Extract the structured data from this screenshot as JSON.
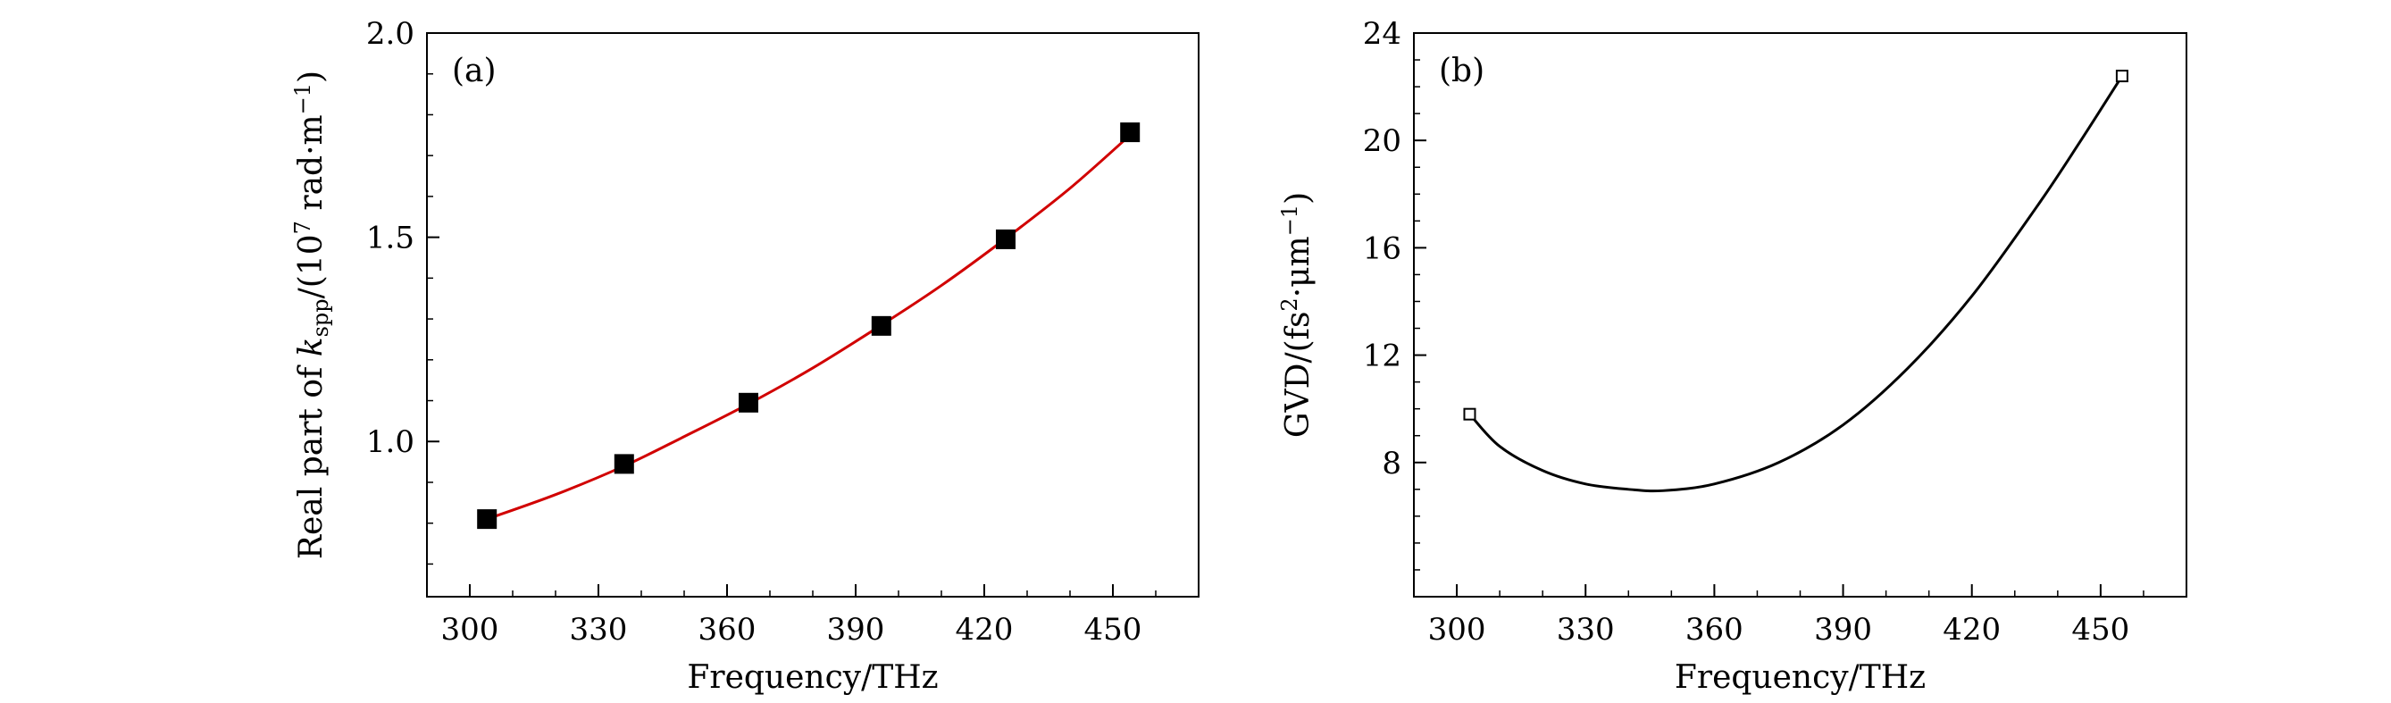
{
  "colors": {
    "fit_a": "#d10000",
    "curve_b": "#000000",
    "axis": "#000000"
  },
  "chart_data": [
    {
      "type": "scatter",
      "panel_label": "(a)",
      "xlabel": "Frequency/THz",
      "ylabel": {
        "prefix": "Real part of ",
        "symbol": "k",
        "subscript": "spp",
        "mid": "/(10",
        "superscript": "7",
        "suffix": " rad·m",
        "suffix_superscript": "−1",
        "close": ")"
      },
      "xlim": [
        290,
        470
      ],
      "ylim": [
        0.62,
        2.0
      ],
      "xticks": [
        "300",
        "330",
        "360",
        "390",
        "420",
        "450"
      ],
      "yticks": [
        "1.0",
        "1.5",
        "2.0"
      ],
      "series": [
        {
          "name": "data",
          "marker": "filled-square",
          "x": [
            304,
            336,
            365,
            396,
            425,
            454
          ],
          "y": [
            0.81,
            0.945,
            1.095,
            1.283,
            1.495,
            1.757
          ]
        },
        {
          "name": "fit",
          "style": "line",
          "x": [
            304,
            320,
            336,
            350,
            365,
            380,
            396,
            410,
            425,
            440,
            454
          ],
          "y": [
            0.81,
            0.87,
            0.94,
            1.012,
            1.092,
            1.18,
            1.285,
            1.382,
            1.497,
            1.62,
            1.75
          ]
        }
      ]
    },
    {
      "type": "line",
      "panel_label": "(b)",
      "xlabel": "Frequency/THz",
      "ylabel": {
        "prefix": "GVD/(fs",
        "superscript": "2",
        "suffix": "·μm",
        "suffix_superscript": "−1",
        "close": ")"
      },
      "xlim": [
        290,
        470
      ],
      "ylim": [
        3,
        24
      ],
      "xticks": [
        "300",
        "330",
        "360",
        "390",
        "420",
        "450"
      ],
      "yticks": [
        "8",
        "12",
        "16",
        "20",
        "24"
      ],
      "series": [
        {
          "name": "endpoints",
          "marker": "open-square",
          "x": [
            303,
            455
          ],
          "y": [
            9.8,
            22.4
          ]
        },
        {
          "name": "GVD",
          "style": "line",
          "x": [
            303,
            310,
            320,
            330,
            340,
            348,
            360,
            375,
            390,
            405,
            420,
            435,
            445,
            455
          ],
          "y": [
            9.8,
            8.6,
            7.7,
            7.2,
            7.0,
            6.95,
            7.2,
            8.0,
            9.4,
            11.5,
            14.2,
            17.5,
            19.9,
            22.4
          ]
        }
      ]
    }
  ]
}
